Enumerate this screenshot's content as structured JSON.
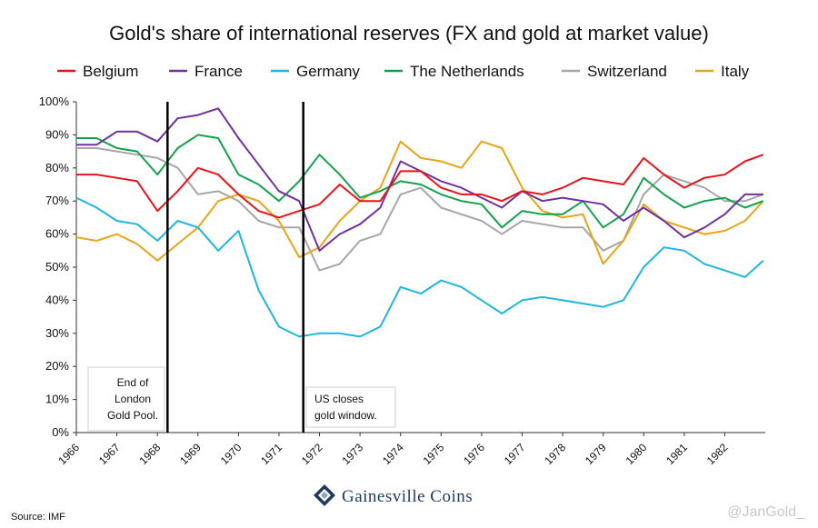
{
  "chart_data": {
    "type": "line",
    "title": "Gold's share of international reserves (FX and gold at market value)",
    "xlabel": "",
    "ylabel": "",
    "xlim": [
      1966.0,
      1983.0
    ],
    "ylim": [
      0,
      100
    ],
    "x_ticks": [
      "1966",
      "1967",
      "1968",
      "1969",
      "1970",
      "1971",
      "1972",
      "1973",
      "1974",
      "1975",
      "1976",
      "1977",
      "1978",
      "1979",
      "1980",
      "1981",
      "1982"
    ],
    "y_ticks": [
      "0%",
      "10%",
      "20%",
      "30%",
      "40%",
      "50%",
      "60%",
      "70%",
      "80%",
      "90%",
      "100%"
    ],
    "grid": false,
    "legend_position": "top",
    "x": [
      1966.0,
      1966.5,
      1967.0,
      1967.5,
      1968.0,
      1968.5,
      1969.0,
      1969.5,
      1970.0,
      1970.5,
      1971.0,
      1971.5,
      1972.0,
      1972.5,
      1973.0,
      1973.5,
      1974.0,
      1974.5,
      1975.0,
      1975.5,
      1976.0,
      1976.5,
      1977.0,
      1977.5,
      1978.0,
      1978.5,
      1979.0,
      1979.5,
      1980.0,
      1980.5,
      1981.0,
      1981.5,
      1982.0,
      1982.5,
      1982.95
    ],
    "series": [
      {
        "name": "Belgium",
        "color": "#e8141c",
        "values": [
          78,
          78,
          77,
          76,
          67,
          73,
          80,
          78,
          72,
          67,
          65,
          67,
          69,
          75,
          70,
          70,
          79,
          79,
          74,
          72,
          72,
          70,
          73,
          72,
          74,
          77,
          76,
          75,
          83,
          78,
          74,
          77,
          78,
          82,
          84
        ]
      },
      {
        "name": "France",
        "color": "#7030a0",
        "values": [
          87,
          87,
          91,
          91,
          88,
          95,
          96,
          98,
          89,
          81,
          73,
          70,
          55,
          60,
          63,
          68,
          82,
          79,
          76,
          74,
          71,
          68,
          73,
          70,
          71,
          70,
          69,
          64,
          68,
          64,
          59,
          62,
          66,
          72,
          72
        ]
      },
      {
        "name": "Germany",
        "color": "#1fb5e0",
        "values": [
          71,
          68,
          64,
          63,
          58,
          64,
          62,
          55,
          61,
          43,
          32,
          29,
          30,
          30,
          29,
          32,
          44,
          42,
          46,
          44,
          40,
          36,
          40,
          41,
          40,
          39,
          38,
          40,
          50,
          56,
          55,
          51,
          49,
          47,
          52
        ]
      },
      {
        "name": "The Netherlands",
        "color": "#12a24a",
        "values": [
          89,
          89,
          86,
          85,
          78,
          86,
          90,
          89,
          78,
          75,
          70,
          76,
          84,
          78,
          71,
          73,
          76,
          75,
          72,
          70,
          69,
          62,
          67,
          66,
          66,
          70,
          62,
          66,
          77,
          72,
          68,
          70,
          71,
          68,
          70
        ]
      },
      {
        "name": "Switzerland",
        "color": "#a6a6a6",
        "values": [
          86,
          86,
          85,
          84,
          83,
          80,
          72,
          73,
          70,
          64,
          62,
          62,
          49,
          51,
          58,
          60,
          72,
          74,
          68,
          66,
          64,
          60,
          64,
          63,
          62,
          62,
          55,
          58,
          72,
          78,
          76,
          74,
          70,
          70,
          72
        ]
      },
      {
        "name": "Italy",
        "color": "#e8a317",
        "values": [
          59,
          58,
          60,
          57,
          52,
          57,
          62,
          70,
          72,
          70,
          64,
          53,
          56,
          64,
          70,
          74,
          88,
          83,
          82,
          80,
          88,
          86,
          74,
          67,
          65,
          66,
          51,
          58,
          69,
          64,
          62,
          60,
          61,
          64,
          70
        ]
      }
    ],
    "annotations": [
      {
        "x": 1968.25,
        "text": "End of London Gold Pool."
      },
      {
        "x": 1971.6,
        "text": "US closes gold window."
      }
    ]
  },
  "title": "Gold's share of international reserves (FX and gold at market value)",
  "annotations": {
    "london_lines": [
      "End of",
      "London",
      "Gold Pool."
    ],
    "us_lines": [
      "US closes",
      "gold window."
    ]
  },
  "source": "Source: IMF",
  "brand": "Gainesville Coins",
  "handle": "@JanGold_"
}
